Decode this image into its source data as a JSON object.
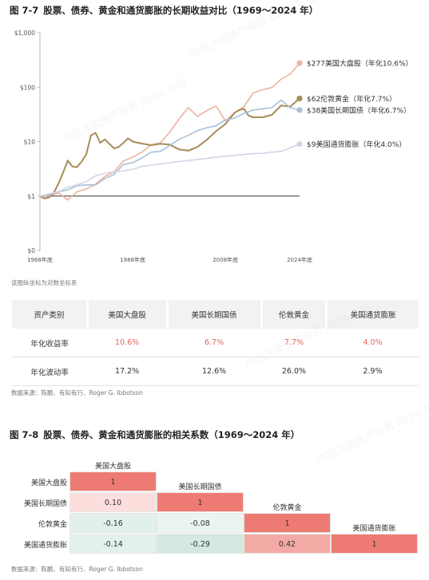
{
  "figure1": {
    "number": "图 7-7",
    "title": "股票、债券、黄金和通货膨胀的长期收益对比（1969～2024 年）",
    "note": "该图纵坐标为对数坐标系"
  },
  "chart_data": [
    {
      "type": "line",
      "yscale": "log",
      "ylim": [
        0.1,
        1000
      ],
      "yticks": [
        {
          "value": 1000,
          "label": "$1,000"
        },
        {
          "value": 100,
          "label": "$100"
        },
        {
          "value": 10,
          "label": "$10"
        },
        {
          "value": 1,
          "label": "$1"
        },
        {
          "value": 0.1,
          "label": "$0"
        }
      ],
      "xlim": [
        1968,
        2024
      ],
      "xticks": [
        {
          "value": 1968,
          "label": "1968年底"
        },
        {
          "value": 1988,
          "label": "1988年底"
        },
        {
          "value": 2008,
          "label": "2008年底"
        },
        {
          "value": 2024,
          "label": "2024年底"
        }
      ],
      "series": [
        {
          "name": "美国大盘股",
          "color": "#edb39f",
          "end_label": "$277美国大盘股（年化10.6%）",
          "x": [
            1968,
            1970,
            1972,
            1974,
            1976,
            1978,
            1980,
            1982,
            1984,
            1986,
            1988,
            1990,
            1992,
            1994,
            1996,
            1998,
            2000,
            2002,
            2004,
            2006,
            2008,
            2010,
            2012,
            2014,
            2016,
            2018,
            2020,
            2022,
            2024
          ],
          "y": [
            1.0,
            0.98,
            1.15,
            0.85,
            1.2,
            1.35,
            1.65,
            2.3,
            2.8,
            4.4,
            5.2,
            6.4,
            8.8,
            9.5,
            15.0,
            26.0,
            42.0,
            29.0,
            37.0,
            45.0,
            24.0,
            34.0,
            44.0,
            78.0,
            90.0,
            98.0,
            140.0,
            175.0,
            277.0
          ]
        },
        {
          "name": "伦敦黄金",
          "color": "#a68d57",
          "end_label": "$62伦敦黄金（年化7.7%）",
          "x": [
            1968,
            1969,
            1970,
            1971,
            1972,
            1973,
            1974,
            1975,
            1976,
            1977,
            1978,
            1979,
            1980,
            1981,
            1982,
            1983,
            1984,
            1985,
            1986,
            1987,
            1988,
            1990,
            1992,
            1994,
            1996,
            1998,
            2000,
            2002,
            2004,
            2006,
            2008,
            2010,
            2011,
            2012,
            2013,
            2014,
            2016,
            2018,
            2020,
            2022,
            2024
          ],
          "y": [
            1.0,
            0.9,
            0.95,
            1.15,
            1.7,
            2.7,
            4.5,
            3.5,
            3.4,
            4.3,
            5.8,
            13.0,
            14.5,
            9.5,
            11.0,
            9.0,
            7.5,
            8.0,
            9.5,
            11.5,
            10.0,
            9.2,
            8.6,
            9.1,
            8.8,
            7.2,
            6.8,
            8.0,
            10.8,
            15.5,
            21.0,
            34.0,
            38.0,
            40.0,
            30.0,
            28.0,
            28.0,
            31.0,
            46.0,
            44.0,
            62.0
          ]
        },
        {
          "name": "美国长期国债",
          "color": "#a9bfd8",
          "end_label": "$38美国长期国债（年化6.7%）",
          "x": [
            1968,
            1970,
            1972,
            1974,
            1976,
            1978,
            1980,
            1982,
            1984,
            1986,
            1988,
            1990,
            1992,
            1994,
            1996,
            1998,
            2000,
            2002,
            2004,
            2006,
            2008,
            2010,
            2012,
            2014,
            2016,
            2018,
            2020,
            2022,
            2024
          ],
          "y": [
            1.0,
            1.05,
            1.2,
            1.3,
            1.55,
            1.6,
            1.6,
            2.1,
            2.5,
            3.8,
            4.1,
            5.0,
            6.4,
            6.6,
            8.5,
            11.0,
            13.0,
            16.0,
            18.0,
            19.5,
            25.0,
            27.0,
            33.0,
            38.0,
            40.0,
            42.0,
            58.0,
            42.0,
            38.0
          ]
        },
        {
          "name": "美国通货膨胀",
          "color": "#d3d5e4",
          "end_label": "$9美国通货膨胀（年化4.0%）",
          "x": [
            1968,
            1970,
            1972,
            1974,
            1976,
            1978,
            1980,
            1982,
            1984,
            1986,
            1988,
            1990,
            1992,
            1994,
            1996,
            1998,
            2000,
            2002,
            2004,
            2006,
            2008,
            2010,
            2012,
            2014,
            2016,
            2018,
            2020,
            2022,
            2024
          ],
          "y": [
            1.0,
            1.1,
            1.2,
            1.45,
            1.6,
            1.85,
            2.35,
            2.6,
            2.8,
            2.9,
            3.1,
            3.5,
            3.7,
            3.9,
            4.1,
            4.3,
            4.5,
            4.7,
            4.9,
            5.2,
            5.4,
            5.6,
            5.8,
            6.0,
            6.1,
            6.4,
            6.6,
            7.7,
            9.0
          ]
        }
      ]
    },
    {
      "type": "table",
      "headers": [
        "资产类别",
        "美国大盘股",
        "美国长期国债",
        "伦敦黄金",
        "美国通货膨胀"
      ],
      "rows": [
        [
          "年化收益率",
          "10.6%",
          "6.7%",
          "7.7%",
          "4.0%"
        ],
        [
          "年化波动率",
          "17.2%",
          "12.6%",
          "26.0%",
          "2.9%"
        ]
      ]
    },
    {
      "type": "heatmap",
      "labels": [
        "美国大盘股",
        "美国长期国债",
        "伦敦黄金",
        "美国通货膨胀"
      ],
      "values": [
        [
          1,
          null,
          null,
          null
        ],
        [
          0.1,
          1,
          null,
          null
        ],
        [
          -0.16,
          -0.08,
          1,
          null
        ],
        [
          -0.14,
          -0.29,
          0.42,
          1
        ]
      ],
      "display": [
        [
          "1",
          "",
          "",
          ""
        ],
        [
          "0.10",
          "1",
          "",
          ""
        ],
        [
          "-0.16",
          "-0.08",
          "1",
          ""
        ],
        [
          "-0.14",
          "-0.29",
          "0.42",
          "1"
        ]
      ]
    }
  ],
  "source1": "数据来源：陈鹏、有知有行、Roger G. Ibbotson",
  "figure2": {
    "number": "图 7-8",
    "title": "股票、债券、黄金和通货膨胀的相关系数（1969～2024 年）"
  },
  "source2": "数据来源：陈鹏、有知有行、Roger G. Ibbotson",
  "watermark": "中国大类资产投资 2024 年报"
}
